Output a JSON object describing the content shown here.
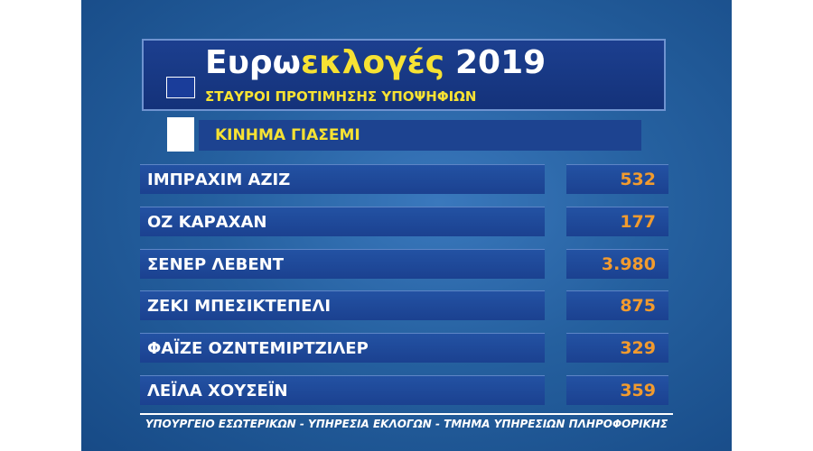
{
  "header": {
    "title_parts": [
      "Ευρω",
      "εκλογές",
      "2019"
    ],
    "subtitle": "ΣΤΑΥΡΟΙ ΠΡΟΤΙΜΗΣΗΣ ΥΠΟΨΗΦΙΩΝ"
  },
  "party": "ΚΙΝΗΜΑ ΓΙΑΣΕΜΙ",
  "table": {
    "rows": [
      [
        "ΙΜΠΡΑΧΙΜ ΑΖΙΖ",
        "532"
      ],
      [
        "ΟΖ ΚΑΡΑΧΑΝ",
        "177"
      ],
      [
        "ΣΕΝΕΡ ΛΕΒΕΝΤ",
        "3.980"
      ],
      [
        "ΖΕΚΙ ΜΠΕΣΙΚΤΕΠΕΛΙ",
        "875"
      ],
      [
        "ΦΑΪΖΕ ΟΖΝΤΕΜΙΡΤΖΙΛΕΡ",
        "329"
      ],
      [
        "ΛΕΪΛΑ ΧΟΥΣΕΪΝ",
        "359"
      ]
    ]
  },
  "footer": "ΥΠΟΥΡΓΕΙΟ ΕΣΩΤΕΡΙΚΩΝ - ΥΠΗΡΕΣΙΑ ΕΚΛΟΓΩΝ - ΤΜΗΜΑ ΥΠΗΡΕΣΙΩΝ ΠΛΗΡΟΦΟΡΙΚΗΣ"
}
